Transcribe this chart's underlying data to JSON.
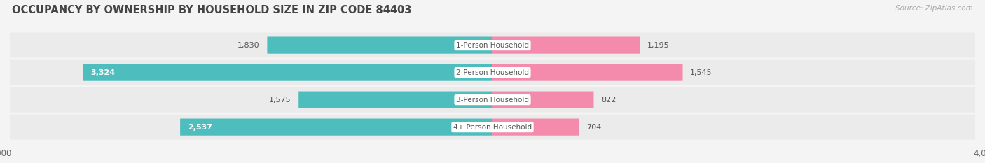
{
  "title": "OCCUPANCY BY OWNERSHIP BY HOUSEHOLD SIZE IN ZIP CODE 84403",
  "source": "Source: ZipAtlas.com",
  "categories": [
    "1-Person Household",
    "2-Person Household",
    "3-Person Household",
    "4+ Person Household"
  ],
  "owner_values": [
    1830,
    3324,
    1575,
    2537
  ],
  "renter_values": [
    1195,
    1545,
    822,
    704
  ],
  "owner_color": "#4dbdbd",
  "renter_color": "#f48aac",
  "renter_color_2": "#f06090",
  "max_val": 4000,
  "bg_color": "#f4f4f4",
  "row_bg_color": "#ececec",
  "row_bg_alt_color": "#f4f4f4",
  "title_fontsize": 10.5,
  "axis_label_fontsize": 8.5,
  "bar_label_fontsize": 8,
  "category_fontsize": 7.5,
  "legend_fontsize": 8,
  "source_fontsize": 7.5
}
